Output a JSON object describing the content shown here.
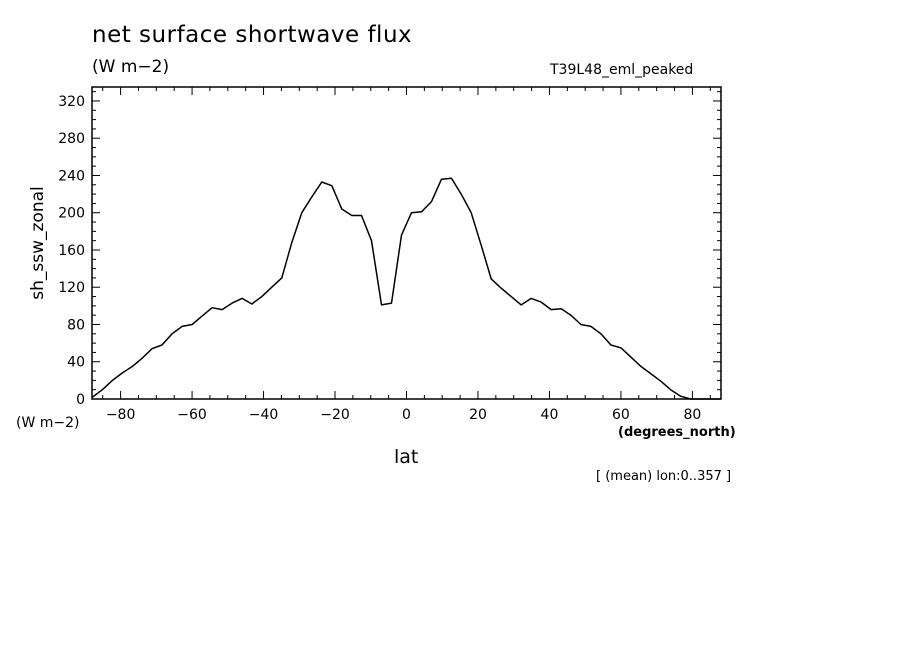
{
  "chart_data": {
    "type": "line",
    "title": "net surface shortwave flux",
    "subtitle": "(W m−2)",
    "run_label": "T39L48_eml_peaked",
    "xlabel": "lat",
    "x_units": "(degrees_north)",
    "ylabel": "sh_ssw_zonal",
    "y_units": "(W m−2)",
    "footnote": "[ (mean) lon:0..357 ]",
    "xlim": [
      -88,
      88
    ],
    "ylim": [
      0,
      335
    ],
    "x_ticks": [
      -80,
      -60,
      -40,
      -20,
      0,
      20,
      40,
      60,
      80
    ],
    "y_ticks": [
      0,
      40,
      80,
      120,
      160,
      200,
      240,
      280,
      320
    ],
    "grid": false,
    "series": [
      {
        "x": [
          -87.9,
          -85.1,
          -82.3,
          -79.5,
          -76.7,
          -73.9,
          -71.2,
          -68.4,
          -65.6,
          -62.8,
          -60.0,
          -57.2,
          -54.4,
          -51.6,
          -48.8,
          -46.0,
          -43.3,
          -40.5,
          -37.7,
          -34.9,
          -32.1,
          -29.3,
          -26.5,
          -23.7,
          -20.9,
          -18.1,
          -15.3,
          -12.6,
          -9.8,
          -7.0,
          -4.2,
          -1.4,
          1.4,
          4.2,
          7.0,
          9.8,
          12.6,
          15.3,
          18.1,
          20.9,
          23.7,
          26.5,
          29.3,
          32.1,
          34.9,
          37.7,
          40.5,
          43.3,
          46.0,
          48.8,
          51.6,
          54.4,
          57.2,
          60.0,
          62.8,
          65.6,
          68.4,
          71.2,
          73.9,
          76.7,
          79.5,
          82.3,
          85.1,
          87.9
        ],
        "y": [
          2,
          10,
          20,
          28,
          35,
          44,
          54,
          58,
          70,
          78,
          80,
          89,
          98,
          96,
          103,
          108,
          102,
          110,
          120,
          130,
          168,
          200,
          217,
          233,
          229,
          204,
          197,
          197,
          170,
          101,
          103,
          176,
          200,
          201,
          212,
          236,
          237,
          220,
          200,
          165,
          129,
          119,
          110,
          101,
          108,
          104,
          96,
          97,
          90,
          80,
          78,
          70,
          58,
          55,
          45,
          35,
          27,
          19,
          10,
          3,
          0,
          0,
          0,
          0
        ]
      }
    ]
  }
}
